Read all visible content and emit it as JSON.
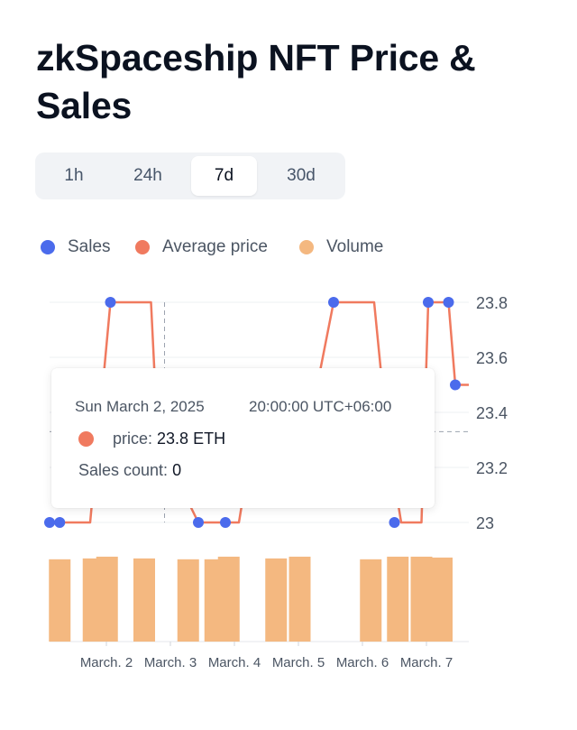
{
  "page": {
    "title": "zkSpaceship NFT Price & Sales"
  },
  "tabs": [
    {
      "label": "1h",
      "active": false
    },
    {
      "label": "24h",
      "active": false
    },
    {
      "label": "7d",
      "active": true
    },
    {
      "label": "30d",
      "active": false
    }
  ],
  "legend": [
    {
      "label": "Sales",
      "color": "#4b6bec"
    },
    {
      "label": "Average price",
      "color": "#f07a5f"
    },
    {
      "label": "Volume",
      "color": "#f4b880"
    }
  ],
  "tooltip": {
    "date": "Sun March 2, 2025",
    "time": "20:00:00 UTC+06:00",
    "price_key": "price:",
    "price_value": "23.8 ETH",
    "sales_key": "Sales count:",
    "sales_value": "0"
  },
  "chart_data": {
    "type": "line",
    "x_ticks": [
      "March. 2",
      "March. 3",
      "March. 4",
      "March. 5",
      "March. 6",
      "March. 7"
    ],
    "y_ticks": [
      "23",
      "23.2",
      "23.4",
      "23.6",
      "23.8"
    ],
    "ylim": [
      23,
      23.8
    ],
    "xlim": [
      0,
      6.2
    ],
    "grid": true,
    "series": [
      {
        "name": "Average price",
        "color": "#f07a5f",
        "points": [
          [
            0,
            23
          ],
          [
            0.6,
            23
          ],
          [
            0.9,
            23.8
          ],
          [
            1.5,
            23.8
          ],
          [
            1.6,
            23.3
          ],
          [
            2.2,
            23
          ],
          [
            2.8,
            23
          ],
          [
            3.0,
            23.3
          ],
          [
            3.4,
            23.3
          ],
          [
            3.8,
            23.3
          ],
          [
            4.2,
            23.8
          ],
          [
            4.8,
            23.8
          ],
          [
            5.0,
            23.3
          ],
          [
            5.2,
            23
          ],
          [
            5.5,
            23
          ],
          [
            5.6,
            23.8
          ],
          [
            5.9,
            23.8
          ],
          [
            6.0,
            23.5
          ],
          [
            6.2,
            23.5
          ]
        ]
      },
      {
        "name": "Sales",
        "color": "#4b6bec",
        "points": [
          [
            0,
            23
          ],
          [
            0.15,
            23
          ],
          [
            0.9,
            23.8
          ],
          [
            2.2,
            23
          ],
          [
            2.6,
            23
          ],
          [
            4.2,
            23.8
          ],
          [
            5.1,
            23
          ],
          [
            5.6,
            23.8
          ],
          [
            5.9,
            23.8
          ],
          [
            6.0,
            23.5
          ]
        ]
      }
    ],
    "volume": {
      "name": "Volume",
      "color": "#f4b880",
      "bars": [
        {
          "x": 0.15,
          "value": 0.94
        },
        {
          "x": 0.65,
          "value": 0.95
        },
        {
          "x": 0.85,
          "value": 0.97
        },
        {
          "x": 1.4,
          "value": 0.95
        },
        {
          "x": 2.05,
          "value": 0.94
        },
        {
          "x": 2.45,
          "value": 0.94
        },
        {
          "x": 2.65,
          "value": 0.97
        },
        {
          "x": 3.35,
          "value": 0.95
        },
        {
          "x": 3.7,
          "value": 0.97
        },
        {
          "x": 4.75,
          "value": 0.94
        },
        {
          "x": 5.15,
          "value": 0.97
        },
        {
          "x": 5.5,
          "value": 0.97
        },
        {
          "x": 5.8,
          "value": 0.96
        }
      ]
    },
    "cursor_x": 1.7,
    "reference_y": 23.33
  }
}
